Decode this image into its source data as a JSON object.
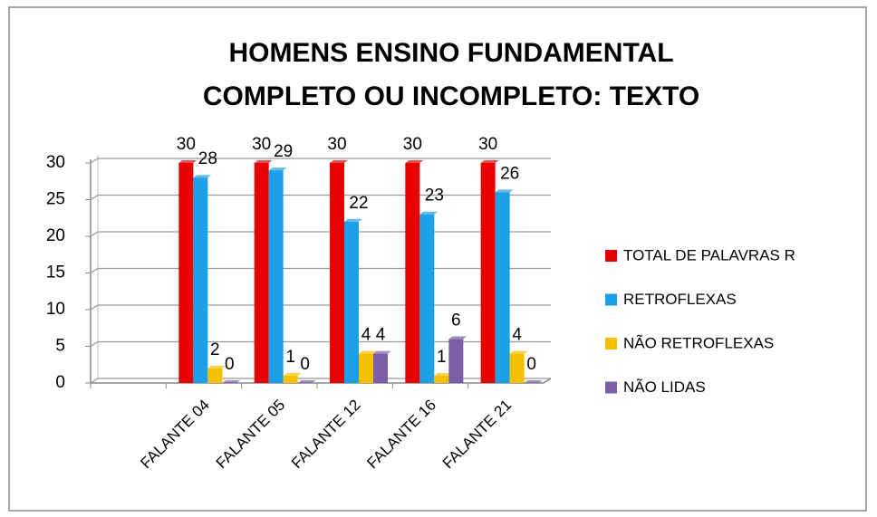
{
  "chart_data": {
    "type": "bar",
    "title": [
      "HOMENS ENSINO FUNDAMENTAL",
      "COMPLETO OU INCOMPLETO: TEXTO"
    ],
    "categories": [
      null,
      "FALANTE 04",
      "FALANTE 05",
      "FALANTE 12",
      "FALANTE 16",
      "FALANTE 21"
    ],
    "series": [
      {
        "name": "TOTAL DE PALAVRAS  R",
        "color": "#e60000",
        "values": [
          null,
          30,
          30,
          30,
          30,
          30
        ]
      },
      {
        "name": "RETROFLEXAS",
        "color": "#1ea0e6",
        "values": [
          null,
          28,
          29,
          22,
          23,
          26
        ]
      },
      {
        "name": "NÃO RETROFLEXAS",
        "color": "#f5c000",
        "values": [
          null,
          2,
          1,
          4,
          1,
          4
        ]
      },
      {
        "name": "NÃO LIDAS",
        "color": "#7a5fa8",
        "values": [
          null,
          0,
          0,
          4,
          6,
          0
        ]
      }
    ],
    "ylim": [
      0,
      30
    ],
    "yticks": [
      0,
      5,
      10,
      15,
      20,
      25,
      30
    ],
    "grid": true,
    "legend": "right"
  }
}
